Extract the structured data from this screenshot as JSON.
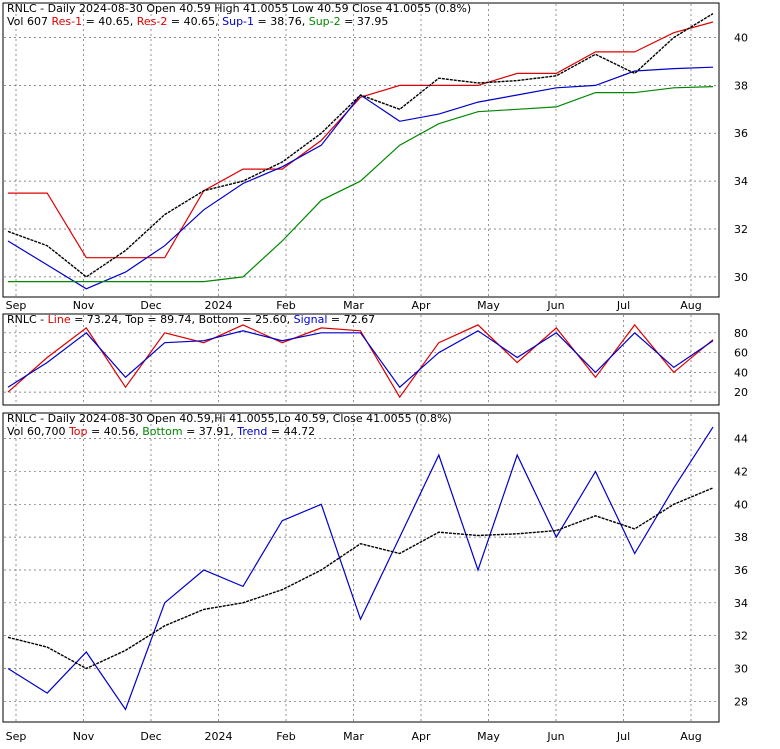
{
  "colors": {
    "red": "#dd0000",
    "green": "#008800",
    "blue": "#0000cc",
    "magenta": "#cc00cc",
    "arrow_red": "#cc1111",
    "arrow_green": "#119911",
    "volume": "#bbbbbb"
  },
  "chart_data": [
    {
      "type": "line",
      "ticker": "RNLC",
      "header": {
        "line1": [
          {
            "text": "RNLC - Daily 2024-08-30 Open 40.59  High 41.0055  Low 40.59  Close 41.0055 (0.8%)",
            "color": "#000000"
          }
        ],
        "line2": [
          {
            "text": "Vol 607 ",
            "color": "#000000"
          },
          {
            "text": "Res-1",
            "color": "#dd0000"
          },
          {
            "text": " = 40.65, ",
            "color": "#000000"
          },
          {
            "text": "Res-2",
            "color": "#dd0000"
          },
          {
            "text": " = 40.65, ",
            "color": "#000000"
          },
          {
            "text": "Sup-1",
            "color": "#0000cc"
          },
          {
            "text": " = 38.76, ",
            "color": "#000000"
          },
          {
            "text": "Sup-2",
            "color": "#008800"
          },
          {
            "text": " = 37.95",
            "color": "#000000"
          }
        ]
      },
      "x_labels": [
        "Sep",
        "Nov",
        "Dec",
        "2024",
        "Feb",
        "Mar",
        "Apr",
        "May",
        "Jun",
        "Jul",
        "Aug"
      ],
      "y_ticks": [
        30,
        32,
        34,
        36,
        38,
        40
      ],
      "ylim": [
        29.2,
        41.4
      ],
      "series": [
        {
          "name": "Res-1",
          "values": [
            33.5,
            33.5,
            30.8,
            30.8,
            30.8,
            33.6,
            34.5,
            34.5,
            35.7,
            37.5,
            38.0,
            38.0,
            38.0,
            38.5,
            38.5,
            39.4,
            39.4,
            40.2,
            40.65
          ]
        },
        {
          "name": "Sup-1",
          "values": [
            31.5,
            30.5,
            29.5,
            30.2,
            31.3,
            32.8,
            33.9,
            34.6,
            35.5,
            37.6,
            36.5,
            36.8,
            37.3,
            37.6,
            37.9,
            38.0,
            38.6,
            38.7,
            38.76
          ]
        },
        {
          "name": "Sup-2",
          "values": [
            29.8,
            29.8,
            29.8,
            29.8,
            29.8,
            29.8,
            30.0,
            31.5,
            33.2,
            34.0,
            35.5,
            36.4,
            36.9,
            37.0,
            37.1,
            37.7,
            37.7,
            37.9,
            37.95
          ]
        },
        {
          "name": "Close",
          "values": [
            31.9,
            31.3,
            30.0,
            31.1,
            32.6,
            33.6,
            34.0,
            34.8,
            36.0,
            37.6,
            37.0,
            38.3,
            38.1,
            38.2,
            38.4,
            39.3,
            38.5,
            40.0,
            41.0
          ]
        }
      ]
    },
    {
      "type": "line",
      "header": [
        {
          "text": "RNLC - ",
          "color": "#000000"
        },
        {
          "text": "Line",
          "color": "#dd0000"
        },
        {
          "text": " = 73.24, ",
          "color": "#000000"
        },
        {
          "text": "Top",
          "color": "#000000"
        },
        {
          "text": " = 89.74, ",
          "color": "#000000"
        },
        {
          "text": "Bottom",
          "color": "#000000"
        },
        {
          "text": " = 25.60, ",
          "color": "#000000"
        },
        {
          "text": "Signal",
          "color": "#0000cc"
        },
        {
          "text": " = 72.67",
          "color": "#000000"
        }
      ],
      "y_ticks": [
        20,
        40,
        60,
        80
      ],
      "ylim": [
        8,
        98
      ],
      "series": [
        {
          "name": "Line",
          "values": [
            20,
            55,
            85,
            25,
            80,
            70,
            88,
            70,
            85,
            82,
            15,
            70,
            88,
            50,
            85,
            35,
            88,
            40,
            73
          ]
        },
        {
          "name": "Signal",
          "values": [
            25,
            50,
            80,
            35,
            70,
            72,
            82,
            72,
            80,
            80,
            25,
            60,
            82,
            55,
            80,
            40,
            80,
            45,
            72
          ]
        }
      ]
    },
    {
      "type": "line",
      "header": {
        "line1": [
          {
            "text": "RNLC - Daily 2024-08-30 Open 40.59,Hi 41.0055,Lo 40.59, Close 41.0055 (0.8%)",
            "color": "#000000"
          }
        ],
        "line2": [
          {
            "text": "Vol 60,700 ",
            "color": "#000000"
          },
          {
            "text": "Top",
            "color": "#dd0000"
          },
          {
            "text": " = 40.56, ",
            "color": "#000000"
          },
          {
            "text": "Bottom",
            "color": "#008800"
          },
          {
            "text": " = 37.91, ",
            "color": "#000000"
          },
          {
            "text": "Trend",
            "color": "#0000cc"
          },
          {
            "text": " = 44.72",
            "color": "#000000"
          }
        ]
      },
      "x_labels": [
        "Sep",
        "Nov",
        "Dec",
        "2024",
        "Feb",
        "Mar",
        "Apr",
        "May",
        "Jun",
        "Jul",
        "Aug"
      ],
      "y_ticks": [
        28,
        30,
        32,
        34,
        36,
        38,
        40,
        42,
        44
      ],
      "ylim": [
        26.8,
        45.5
      ],
      "series": [
        {
          "name": "Trend",
          "values": [
            30,
            28.5,
            31,
            27.5,
            34,
            36,
            35,
            39,
            40,
            33,
            38,
            43,
            36,
            43,
            38,
            42,
            37,
            41,
            44.7
          ]
        },
        {
          "name": "Close",
          "values": [
            31.9,
            31.3,
            30.0,
            31.1,
            32.6,
            33.6,
            34.0,
            34.8,
            36.0,
            37.6,
            37.0,
            38.3,
            38.1,
            38.2,
            38.4,
            39.3,
            38.5,
            40.0,
            41.0
          ]
        }
      ]
    }
  ]
}
